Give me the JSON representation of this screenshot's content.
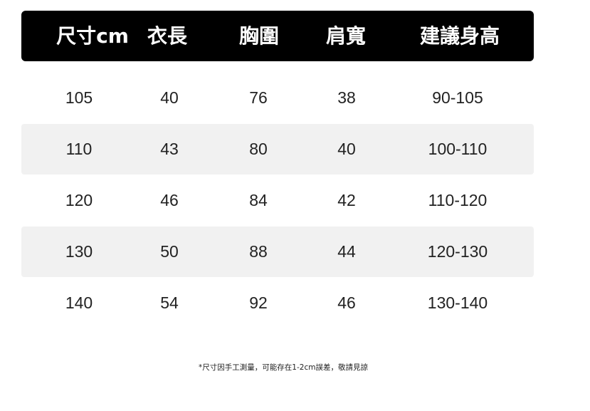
{
  "headers": [
    "尺寸cm",
    "衣長",
    "胸圍",
    "肩寬",
    "建議身高"
  ],
  "rows": [
    [
      "105",
      "40",
      "76",
      "38",
      "90-105"
    ],
    [
      "110",
      "43",
      "80",
      "40",
      "100-110"
    ],
    [
      "120",
      "46",
      "84",
      "42",
      "110-120"
    ],
    [
      "130",
      "50",
      "88",
      "44",
      "120-130"
    ],
    [
      "140",
      "54",
      "92",
      "46",
      "130-140"
    ]
  ],
  "footnote": "*尺寸因手工測量，可能存在1-2cm誤差，敬請見諒"
}
